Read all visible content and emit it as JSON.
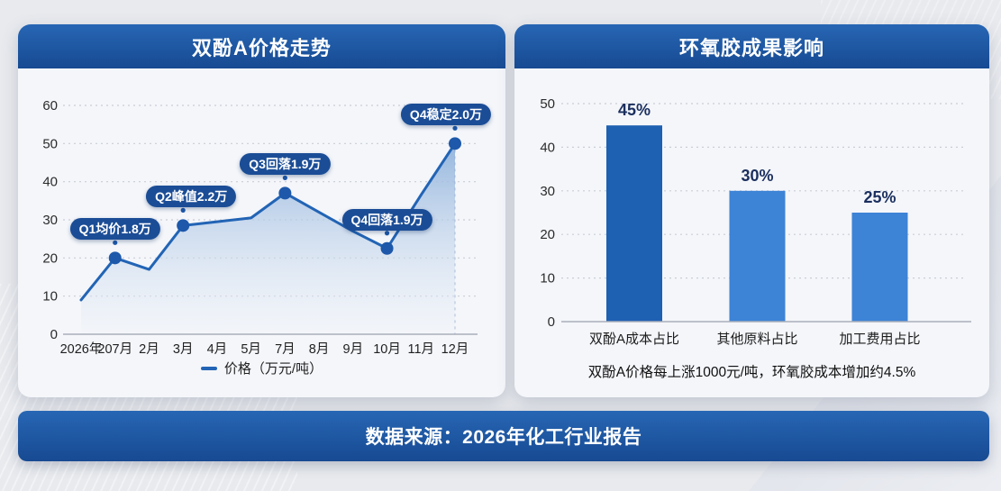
{
  "footer": {
    "text": "数据来源：2026年化工行业报告"
  },
  "colors": {
    "page_bg": "#e8eaee",
    "card_bg": "#f4f6fa",
    "header_top": "#2766b4",
    "header_bottom": "#174a92",
    "pill": "#1b4d96",
    "line": "#2264b5",
    "dot": "#1d58aa",
    "area_top": "#8fb2dc",
    "area_bottom": "#eef2f8",
    "grid": "#c9cdd6",
    "baseline": "#a9aeb9",
    "axis_text": "#2b2b2b",
    "bar_dark": "#1e60b2",
    "bar_light": "#3d83d6",
    "value_label": "#1b2f5e",
    "category_text": "#1c1c1c"
  },
  "chart_data": [
    {
      "id": "price_trend",
      "type": "area",
      "title": "双酚A价格走势",
      "legend": "价格（万元/吨）",
      "legend_position": "bottom",
      "grid": "dotted",
      "ylim": [
        0,
        60
      ],
      "ytick_step": 10,
      "yticks": [
        0,
        10,
        20,
        30,
        40,
        50,
        60
      ],
      "categories": [
        "2026年",
        "207月",
        "2月",
        "3月",
        "4月",
        "5月",
        "7月",
        "8月",
        "9月",
        "10月",
        "11月",
        "12月"
      ],
      "values": [
        9,
        20,
        17,
        28.5,
        29.5,
        30.5,
        37,
        32,
        27,
        22.5,
        36.5,
        50
      ],
      "marker_indices": [
        1,
        3,
        6,
        9,
        11
      ],
      "annotations": [
        {
          "index": 1,
          "label": "Q1均价1.8万",
          "dx": 0
        },
        {
          "index": 3,
          "label": "Q2峰值2.2万",
          "dx": 9
        },
        {
          "index": 6,
          "label": "Q3回落1.9万",
          "dx": 0
        },
        {
          "index": 9,
          "label": "Q4回落1.9万",
          "dx": 0
        },
        {
          "index": 11,
          "label": "Q4稳定2.0万",
          "dx": -10
        }
      ]
    },
    {
      "id": "cost_impact",
      "type": "bar",
      "title": "环氧胶成果影响",
      "caption": "双酚A价格每上涨1000元/吨，环氧胶成本增加约4.5%",
      "grid": "dotted",
      "ylim": [
        0,
        50
      ],
      "ytick_step": 10,
      "yticks": [
        0,
        10,
        20,
        30,
        40,
        50
      ],
      "categories": [
        "双酚A成本占比",
        "其他原料占比",
        "加工费用占比"
      ],
      "values": [
        45,
        30,
        25
      ],
      "value_labels": [
        "45%",
        "30%",
        "25%"
      ],
      "bar_colors": [
        "#1e60b2",
        "#3d83d6",
        "#3d83d6"
      ]
    }
  ]
}
